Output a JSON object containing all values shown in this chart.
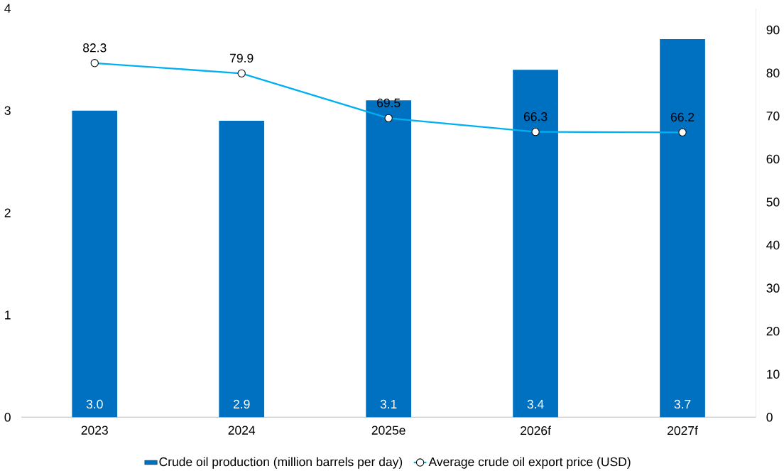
{
  "chart_data": {
    "type": "bar",
    "categories": [
      "2023",
      "2024",
      "2025e",
      "2026f",
      "2027f"
    ],
    "series": [
      {
        "name": "Crude oil production (million barrels per day)",
        "color": "#0070c0",
        "values": [
          3.0,
          2.9,
          3.1,
          3.4,
          3.7
        ],
        "value_labels": [
          "3.0",
          "2.9",
          "3.1",
          "3.4",
          "3.7"
        ]
      },
      {
        "type": "line",
        "axis": "y2",
        "name": "Average crude oil export price (USD)",
        "color": "#00b0f0",
        "marker": "circle",
        "values": [
          82.3,
          79.9,
          69.5,
          66.3,
          66.2
        ],
        "value_labels": [
          "82.3",
          "79.9",
          "69.5",
          "66.3",
          "66.2"
        ]
      }
    ],
    "ylim": [
      0,
      4
    ],
    "yticks": [
      0,
      1,
      2,
      3,
      4
    ],
    "y2lim": [
      0,
      95
    ],
    "y2ticks": [
      0,
      10,
      20,
      30,
      40,
      50,
      60,
      70,
      80,
      90
    ],
    "legend": "bottom"
  }
}
